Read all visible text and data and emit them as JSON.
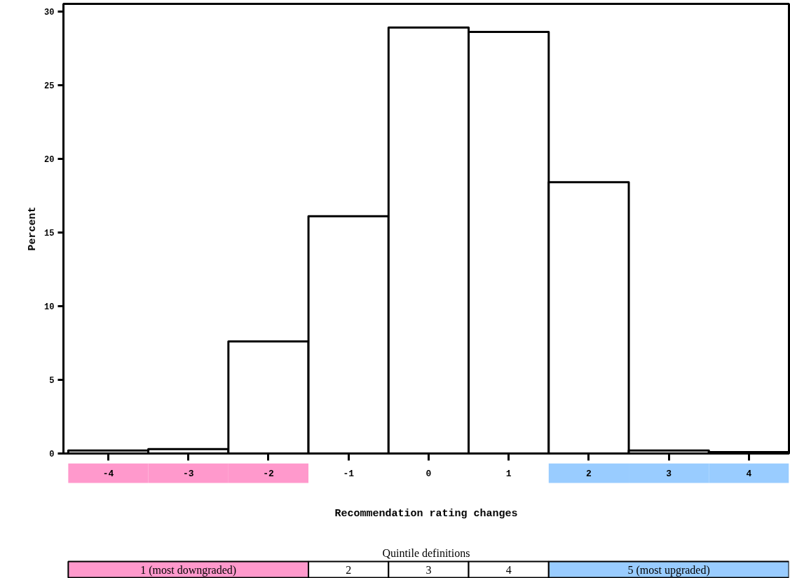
{
  "chart_data": [
    {
      "type": "histogram",
      "xlabel": "Recommendation rating changes",
      "ylabel": "Percent",
      "bins": [
        -4.5,
        -3.5,
        -2.5,
        -1.5,
        -0.5,
        0.5,
        1.5,
        2.5,
        3.5,
        4.5
      ],
      "values": [
        0.2,
        0.3,
        7.6,
        16.1,
        28.9,
        28.6,
        18.4,
        0.2,
        0.1
      ],
      "color": "#ffffff",
      "xlim": [
        -4.56,
        4.5
      ],
      "xticks": [
        -4,
        -3,
        -2,
        -1,
        0,
        1,
        2,
        3,
        4
      ],
      "ylim": [
        0,
        30.5
      ],
      "yticks": [
        0,
        5,
        10,
        15,
        20,
        25,
        30
      ],
      "grid": false
    },
    {
      "type": "other",
      "title": "Quintile definitions",
      "categories": [
        "1 (most downgraded)",
        null,
        null,
        "2",
        "3",
        "4",
        "5 (most upgraded)",
        null,
        null
      ],
      "colors": [
        "#ff99cc",
        "#ff99cc",
        "#ff99cc",
        "#ffffff",
        "#ffffff",
        "#ffffff",
        "#99ccff",
        "#99ccff",
        "#99ccff"
      ]
    }
  ]
}
